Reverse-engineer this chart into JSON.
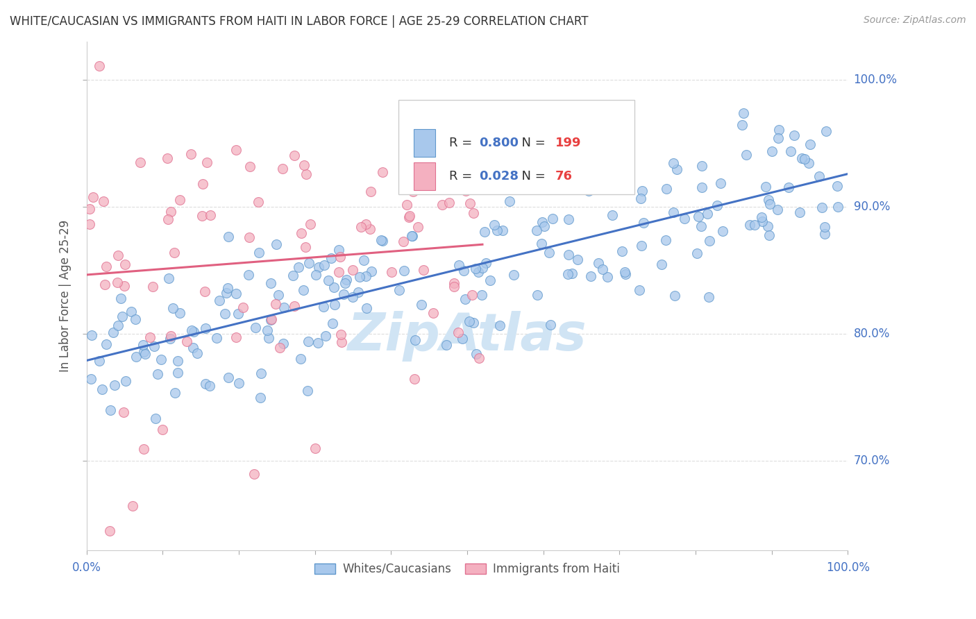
{
  "title": "WHITE/CAUCASIAN VS IMMIGRANTS FROM HAITI IN LABOR FORCE | AGE 25-29 CORRELATION CHART",
  "source": "Source: ZipAtlas.com",
  "ylabel": "In Labor Force | Age 25-29",
  "blue_R": 0.8,
  "blue_N": 199,
  "pink_R": 0.028,
  "pink_N": 76,
  "blue_fill": "#A8C8EC",
  "blue_edge": "#6098CC",
  "pink_fill": "#F4B0C0",
  "pink_edge": "#E07090",
  "blue_line_color": "#4472C4",
  "pink_line_color": "#E06080",
  "legend_R_color": "#4472C4",
  "legend_N_color": "#E84040",
  "watermark_color": "#D0E4F4",
  "legend_label_blue": "Whites/Caucasians",
  "legend_label_pink": "Immigrants from Haiti",
  "xlim": [
    0.0,
    1.0
  ],
  "ylim": [
    0.63,
    1.03
  ],
  "yticks": [
    0.7,
    0.8,
    0.9,
    1.0
  ],
  "yticklabels": [
    "70.0%",
    "80.0%",
    "90.0%",
    "100.0%"
  ],
  "blue_seed": 42,
  "pink_seed": 99
}
